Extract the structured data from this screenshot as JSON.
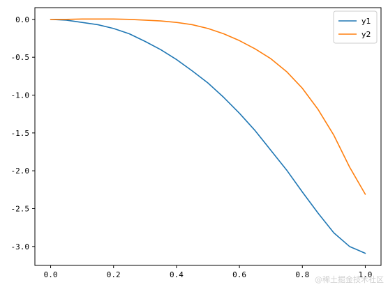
{
  "chart_data": {
    "type": "line",
    "title": "",
    "xlabel": "",
    "ylabel": "",
    "xlim": [
      -0.05,
      1.05
    ],
    "ylim": [
      -3.25,
      0.155
    ],
    "xticks": [
      "0.0",
      "0.2",
      "0.4",
      "0.6",
      "0.8",
      "1.0"
    ],
    "yticks": [
      "0.0",
      "-0.5",
      "-1.0",
      "-1.5",
      "-2.0",
      "-2.5",
      "-3.0"
    ],
    "grid": false,
    "legend_position": "top-right",
    "series": [
      {
        "name": "y1",
        "color": "#1f77b4",
        "x": [
          0.0,
          0.05,
          0.1,
          0.15,
          0.2,
          0.25,
          0.3,
          0.35,
          0.4,
          0.45,
          0.5,
          0.55,
          0.6,
          0.65,
          0.7,
          0.75,
          0.8,
          0.85,
          0.9,
          0.95,
          1.0
        ],
        "y": [
          0.0,
          -0.01,
          -0.04,
          -0.07,
          -0.12,
          -0.19,
          -0.29,
          -0.4,
          -0.53,
          -0.68,
          -0.84,
          -1.03,
          -1.24,
          -1.47,
          -1.73,
          -1.99,
          -2.28,
          -2.56,
          -2.82,
          -3.0,
          -3.09
        ]
      },
      {
        "name": "y2",
        "color": "#ff7f0e",
        "x": [
          0.0,
          0.05,
          0.1,
          0.15,
          0.2,
          0.25,
          0.3,
          0.35,
          0.4,
          0.45,
          0.5,
          0.55,
          0.6,
          0.65,
          0.7,
          0.75,
          0.8,
          0.85,
          0.9,
          0.95,
          1.0
        ],
        "y": [
          0.0,
          0.0,
          0.005,
          0.005,
          0.005,
          0.0,
          -0.01,
          -0.02,
          -0.04,
          -0.07,
          -0.12,
          -0.19,
          -0.28,
          -0.39,
          -0.52,
          -0.69,
          -0.91,
          -1.19,
          -1.53,
          -1.95,
          -2.31
        ]
      }
    ]
  },
  "watermark": "@稀土掘金技术社区"
}
